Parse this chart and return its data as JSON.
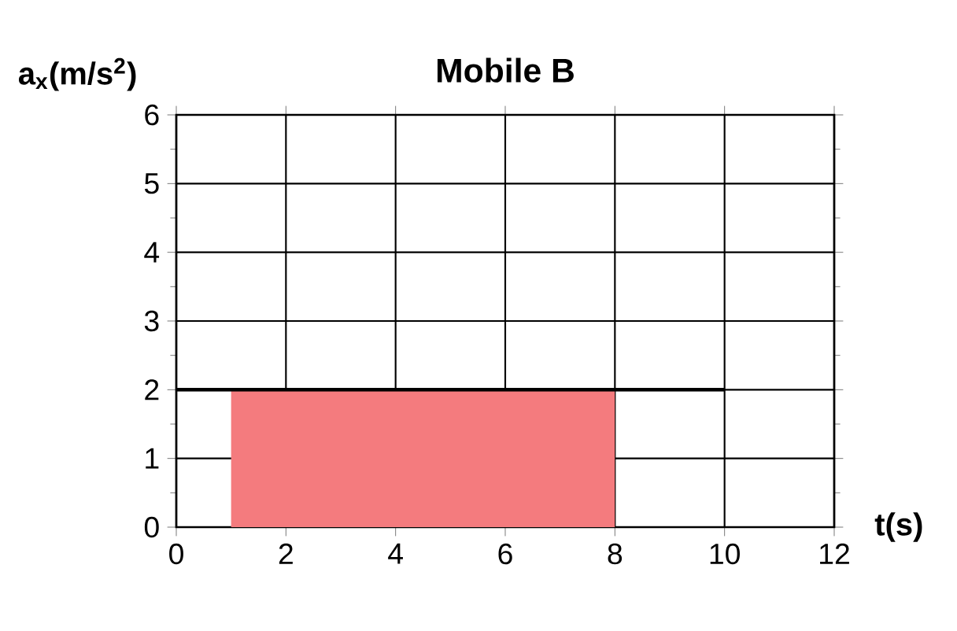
{
  "chart_data": {
    "type": "line",
    "title": "Mobile B",
    "xlabel": "t(s)",
    "ylabel": "a$_{x}$(m/s$^{2}$)",
    "xlim": [
      0,
      12
    ],
    "xticks": [
      0,
      2,
      4,
      6,
      8,
      10,
      12
    ],
    "ylim": [
      0,
      6
    ],
    "yticks": [
      0,
      1,
      2,
      3,
      4,
      5,
      6
    ],
    "grid": true,
    "series": [
      {
        "type": "area",
        "color": "#f47b7e",
        "x": [
          1,
          8
        ],
        "values": [
          2,
          2
        ]
      },
      {
        "color": "#000000",
        "x": [
          0,
          10
        ],
        "values": [
          2,
          2
        ]
      }
    ]
  }
}
